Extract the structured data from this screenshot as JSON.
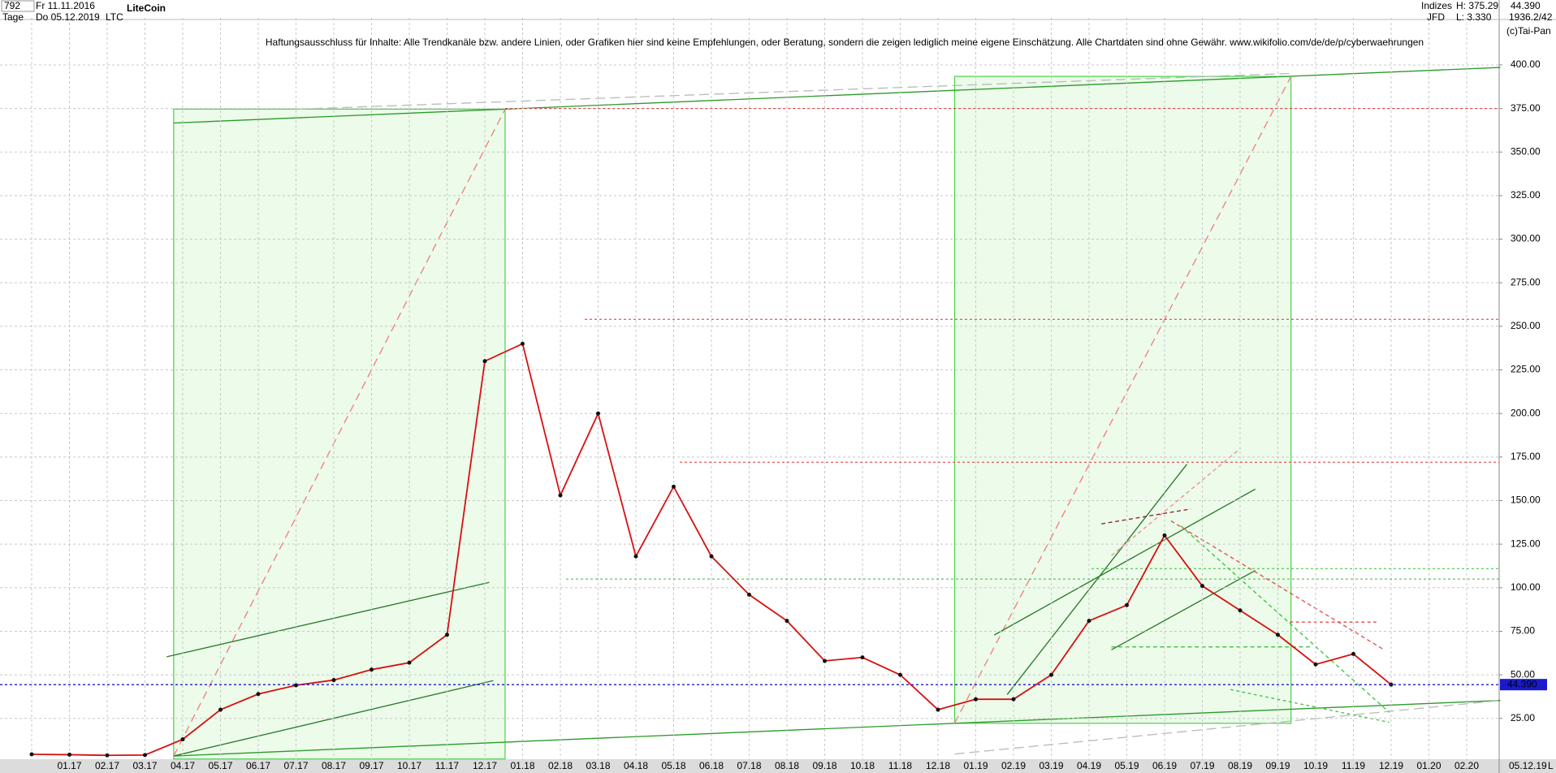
{
  "header": {
    "count": "792",
    "start_date": "Fr 11.11.2016",
    "period": "Tage",
    "end_date": "Do 05.12.2019",
    "symbol": "LTC",
    "group": "Indizes",
    "broker": "JFD",
    "high": "H: 375.29",
    "low": "L: 3.330",
    "ratio": "1936.2/42",
    "copyright": "(c)Tai-Pan",
    "date_label": "05.12.19",
    "scale_mode": "L"
  },
  "chart_data": {
    "type": "line",
    "title": "LiteCoin",
    "annotation": "Haftungsausschluss für Inhalte: Alle Trendkanäle bzw. andere Linien, oder Grafiken hier sind keine Empfehlungen, oder Beratung, sondern die zeigen lediglich meine eigene Einschätzung. Alle Chartdaten sind ohne Gewähr.  www.wikifolio.com/de/de/p/cyberwaehrungen",
    "categories": [
      null,
      "01.17",
      "02.17",
      "03.17",
      "04.17",
      "05.17",
      "06.17",
      "07.17",
      "08.17",
      "09.17",
      "10.17",
      "11.17",
      "12.17",
      "01.18",
      "02.18",
      "03.18",
      "04.18",
      "05.18",
      "06.18",
      "07.18",
      "08.18",
      "09.18",
      "10.18",
      "11.18",
      "12.18",
      "01.19",
      "02.19",
      "03.19",
      "04.19",
      "05.19",
      "06.19",
      "07.19",
      "08.19",
      "09.19",
      "10.19",
      "11.19",
      "12.19",
      "01.20",
      "02.20"
    ],
    "series": [
      {
        "name": "LTC",
        "color": "#d81010",
        "values": [
          4.4,
          4.2,
          3.8,
          4.0,
          13,
          30,
          39,
          44,
          47,
          53,
          57,
          73,
          230,
          240,
          153,
          200,
          118,
          158,
          118,
          96,
          81,
          58,
          60,
          50,
          30,
          36,
          36,
          50,
          81,
          90,
          130,
          101,
          87,
          73,
          56,
          62,
          44.39,
          null,
          null
        ]
      }
    ],
    "last_price": {
      "value": 44.39,
      "label": "44.390",
      "color": "#1a1acc"
    },
    "levels": [
      {
        "value": 375,
        "color": "#e03030"
      },
      {
        "value": 254,
        "color": "#e03030"
      },
      {
        "value": 172,
        "color": "#e03030"
      },
      {
        "value": 111,
        "color": "#30c030"
      },
      {
        "value": 105,
        "color": "#30c030"
      }
    ],
    "ylim": [
      1.6,
      427
    ],
    "yticks": [
      {
        "value": 25,
        "label": "25.00"
      },
      {
        "value": 50,
        "label": "50.00"
      },
      {
        "value": 75,
        "label": "75.00"
      },
      {
        "value": 100,
        "label": "100.00"
      },
      {
        "value": 125,
        "label": "125.00"
      },
      {
        "value": 150,
        "label": "150.00"
      },
      {
        "value": 175,
        "label": "175.00"
      },
      {
        "value": 200,
        "label": "200.00"
      },
      {
        "value": 225,
        "label": "225.00"
      },
      {
        "value": 250,
        "label": "250.00"
      },
      {
        "value": 275,
        "label": "275.00"
      },
      {
        "value": 300,
        "label": "300.00"
      },
      {
        "value": 325,
        "label": "325.00"
      },
      {
        "value": 350,
        "label": "350.00"
      },
      {
        "value": 375,
        "label": "375.00"
      },
      {
        "value": 400,
        "label": "400.00"
      }
    ],
    "grid": true
  }
}
